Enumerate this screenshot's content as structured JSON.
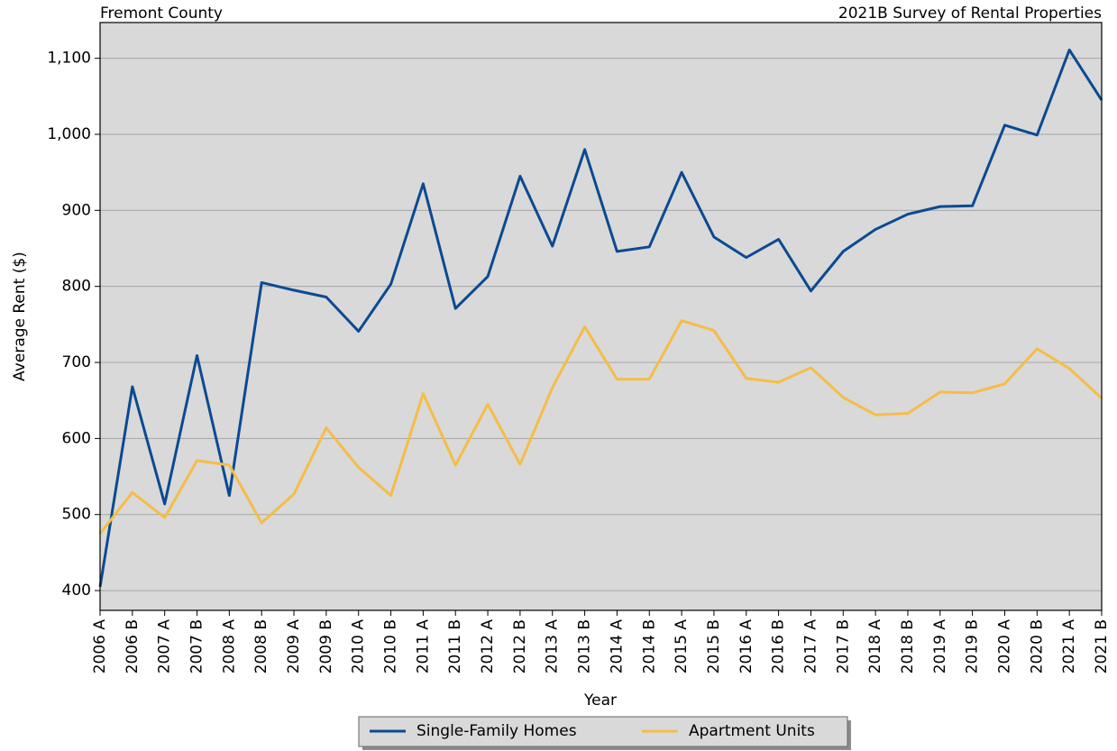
{
  "chart_data": {
    "type": "line",
    "title_left": "Fremont County",
    "title_right": "2021B Survey of Rental Properties",
    "x_label": "Year",
    "y_label": "Average Rent ($)",
    "categories": [
      "2006 A",
      "2006 B",
      "2007 A",
      "2007 B",
      "2008 A",
      "2008 B",
      "2009 A",
      "2009 B",
      "2010 A",
      "2010 B",
      "2011 A",
      "2011 B",
      "2012 A",
      "2012 B",
      "2013 A",
      "2013 B",
      "2014 A",
      "2014 B",
      "2015 A",
      "2015 B",
      "2016 A",
      "2016 B",
      "2017 A",
      "2017 B",
      "2018 A",
      "2018 B",
      "2019 A",
      "2019 B",
      "2020 A",
      "2020 B",
      "2021 A",
      "2021 B"
    ],
    "series": [
      {
        "name": "Single-Family Homes",
        "color": "#0b4a92",
        "values": [
          405,
          668,
          514,
          709,
          525,
          805,
          795,
          786,
          741,
          803,
          935,
          771,
          813,
          945,
          853,
          980,
          846,
          852,
          950,
          865,
          838,
          862,
          794,
          846,
          875,
          895,
          905,
          906,
          1012,
          999,
          1111,
          1045
        ]
      },
      {
        "name": "Apartment Units",
        "color": "#f5bd47",
        "values": [
          475,
          529,
          496,
          571,
          565,
          489,
          527,
          614,
          562,
          525,
          659,
          565,
          645,
          566,
          667,
          747,
          678,
          678,
          755,
          742,
          679,
          674,
          693,
          654,
          631,
          633,
          661,
          660,
          672,
          718,
          692,
          653
        ]
      }
    ],
    "ylim": [
      374,
      1147
    ],
    "yticks": [
      400,
      500,
      600,
      700,
      800,
      900,
      {
        "value": 1000,
        "label": "1,000"
      },
      {
        "value": 1100,
        "label": "1,100"
      }
    ],
    "grid": true,
    "plot_background": "#d9d9d9",
    "legend": "bottom"
  }
}
